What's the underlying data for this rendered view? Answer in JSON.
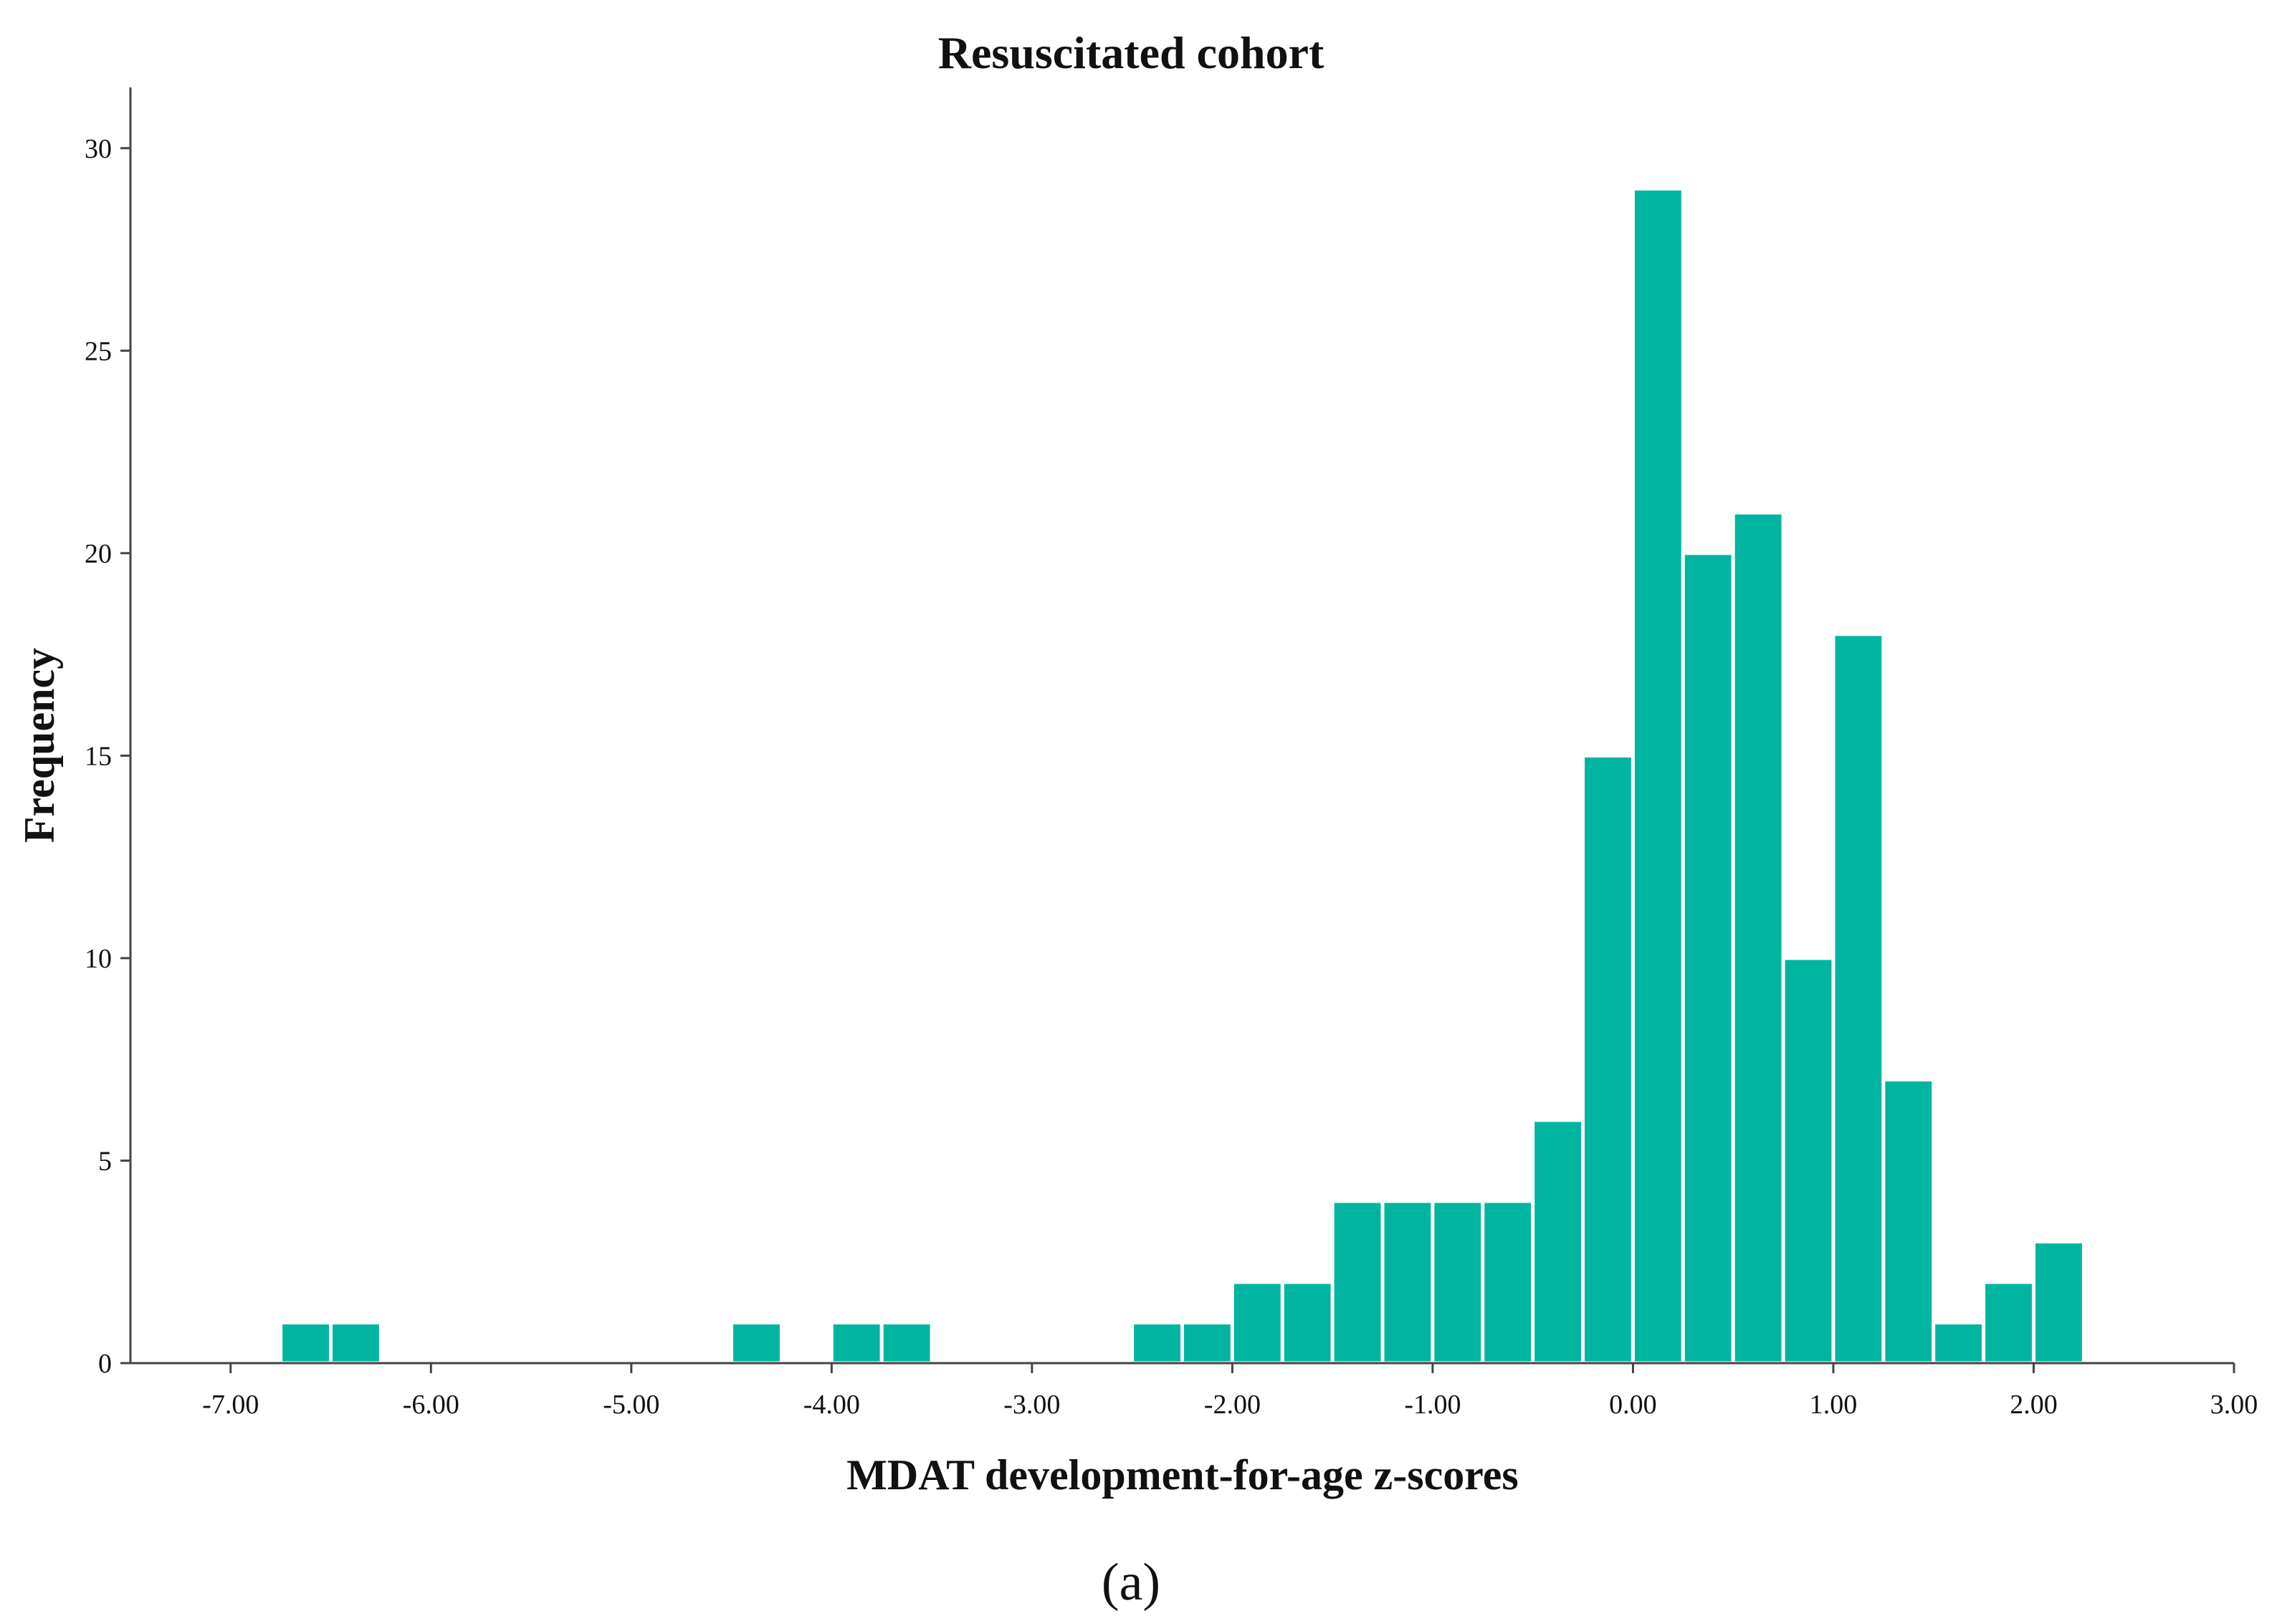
{
  "chart_data": {
    "type": "bar",
    "title": "Resuscitated cohort",
    "xlabel": "MDAT development-for-age z-scores",
    "ylabel": "Frequency",
    "panel_label": "(a)",
    "bar_color": "#00b5a0",
    "xlim": [
      -7.5,
      3.0
    ],
    "ylim": [
      0,
      31.5
    ],
    "bin_width": 0.25,
    "x_ticks": [
      -7,
      -6,
      -5,
      -4,
      -3,
      -2,
      -1,
      0,
      1,
      2,
      3
    ],
    "x_tick_labels": [
      "-7.00",
      "-6.00",
      "-5.00",
      "-4.00",
      "-3.00",
      "-2.00",
      "-1.00",
      "0.00",
      "1.00",
      "2.00",
      "3.00"
    ],
    "y_ticks": [
      0,
      5,
      10,
      15,
      20,
      25,
      30
    ],
    "y_tick_labels": [
      "0",
      "5",
      "10",
      "15",
      "20",
      "25",
      "30"
    ],
    "bins": [
      {
        "start": -6.75,
        "count": 1
      },
      {
        "start": -6.5,
        "count": 1
      },
      {
        "start": -4.5,
        "count": 1
      },
      {
        "start": -4.0,
        "count": 1
      },
      {
        "start": -3.75,
        "count": 1
      },
      {
        "start": -2.5,
        "count": 1
      },
      {
        "start": -2.25,
        "count": 1
      },
      {
        "start": -2.0,
        "count": 2
      },
      {
        "start": -1.75,
        "count": 2
      },
      {
        "start": -1.5,
        "count": 4
      },
      {
        "start": -1.25,
        "count": 4
      },
      {
        "start": -1.0,
        "count": 4
      },
      {
        "start": -0.75,
        "count": 4
      },
      {
        "start": -0.5,
        "count": 6
      },
      {
        "start": -0.25,
        "count": 15
      },
      {
        "start": 0.0,
        "count": 29
      },
      {
        "start": 0.25,
        "count": 20
      },
      {
        "start": 0.5,
        "count": 21
      },
      {
        "start": 0.75,
        "count": 10
      },
      {
        "start": 1.0,
        "count": 18
      },
      {
        "start": 1.25,
        "count": 7
      },
      {
        "start": 1.5,
        "count": 1
      },
      {
        "start": 1.75,
        "count": 2
      },
      {
        "start": 2.0,
        "count": 3
      }
    ]
  }
}
